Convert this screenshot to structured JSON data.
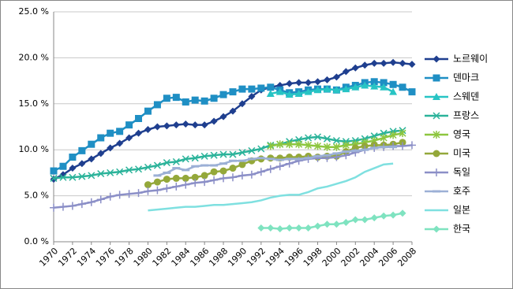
{
  "chart_data": {
    "type": "line",
    "grid": true,
    "legend": "right",
    "x": [
      1970,
      1971,
      1972,
      1973,
      1974,
      1975,
      1976,
      1977,
      1978,
      1979,
      1980,
      1981,
      1982,
      1983,
      1984,
      1985,
      1986,
      1987,
      1988,
      1989,
      1990,
      1991,
      1992,
      1993,
      1994,
      1995,
      1996,
      1997,
      1998,
      1999,
      2000,
      2001,
      2002,
      2003,
      2004,
      2005,
      2006,
      2007,
      2008
    ],
    "xlim": [
      1970,
      2008
    ],
    "xticks": [
      1970,
      1972,
      1974,
      1976,
      1978,
      1980,
      1982,
      1984,
      1986,
      1988,
      1990,
      1992,
      1994,
      1996,
      1998,
      2000,
      2002,
      2004,
      2006,
      2008
    ],
    "ylim": [
      0,
      25
    ],
    "yticks": [
      {
        "value": 0,
        "label": "0.0 %"
      },
      {
        "value": 5,
        "label": "5.0 %"
      },
      {
        "value": 10,
        "label": "10.0 %"
      },
      {
        "value": 15,
        "label": "15.0 %"
      },
      {
        "value": 20,
        "label": "20.0 %"
      },
      {
        "value": 25,
        "label": "25.0 %"
      }
    ],
    "series": [
      {
        "name": "노르웨이",
        "color": "#1f3f8f",
        "marker": "diamond",
        "values": [
          6.8,
          7.3,
          8.0,
          8.5,
          9.0,
          9.6,
          10.2,
          10.7,
          11.3,
          11.8,
          12.2,
          12.5,
          12.6,
          12.7,
          12.8,
          12.7,
          12.7,
          13.1,
          13.6,
          14.2,
          15.0,
          15.8,
          16.5,
          16.8,
          17.0,
          17.2,
          17.3,
          17.3,
          17.4,
          17.6,
          17.9,
          18.5,
          18.9,
          19.2,
          19.4,
          19.4,
          19.5,
          19.4,
          19.3
        ]
      },
      {
        "name": "덴마크",
        "color": "#1f8fc4",
        "marker": "square",
        "values": [
          7.7,
          8.2,
          9.2,
          9.9,
          10.6,
          11.3,
          11.8,
          12.0,
          12.7,
          13.4,
          14.2,
          14.9,
          15.6,
          15.7,
          15.2,
          15.4,
          15.3,
          15.6,
          16.0,
          16.3,
          16.6,
          16.6,
          16.7,
          16.8,
          16.5,
          16.2,
          16.3,
          16.5,
          16.6,
          16.6,
          16.5,
          16.8,
          17.0,
          17.3,
          17.4,
          17.3,
          17.1,
          16.8,
          16.3
        ]
      },
      {
        "name": "스웨덴",
        "color": "#27c4c4",
        "marker": "triangle",
        "values": [
          null,
          null,
          null,
          null,
          null,
          null,
          null,
          null,
          null,
          null,
          null,
          null,
          null,
          null,
          null,
          null,
          null,
          null,
          null,
          null,
          null,
          null,
          null,
          16.1,
          16.3,
          16.0,
          16.1,
          16.3,
          16.5,
          16.6,
          16.5,
          16.6,
          16.8,
          17.0,
          16.9,
          16.8,
          16.3,
          null,
          null
        ]
      },
      {
        "name": "프랑스",
        "color": "#2bb39a",
        "marker": "x",
        "values": [
          6.9,
          7.0,
          7.0,
          7.1,
          7.2,
          7.4,
          7.5,
          7.6,
          7.8,
          7.9,
          8.1,
          8.3,
          8.6,
          8.7,
          9.0,
          9.1,
          9.3,
          9.4,
          9.5,
          9.5,
          9.7,
          9.9,
          10.1,
          10.5,
          10.6,
          10.9,
          11.1,
          11.3,
          11.4,
          11.2,
          11.0,
          10.9,
          11.0,
          11.2,
          11.5,
          11.8,
          12.0,
          12.1,
          null
        ]
      },
      {
        "name": "영국",
        "color": "#8dc63f",
        "marker": "star",
        "values": [
          null,
          null,
          null,
          null,
          null,
          null,
          null,
          null,
          null,
          null,
          null,
          null,
          null,
          null,
          null,
          null,
          null,
          null,
          null,
          null,
          null,
          null,
          null,
          10.4,
          10.6,
          10.6,
          10.6,
          10.5,
          10.4,
          10.3,
          10.3,
          10.5,
          10.6,
          10.8,
          11.0,
          11.3,
          11.6,
          11.8,
          null
        ]
      },
      {
        "name": "미국",
        "color": "#94a83a",
        "marker": "circle",
        "values": [
          null,
          null,
          null,
          null,
          null,
          null,
          null,
          null,
          null,
          null,
          6.2,
          6.5,
          6.8,
          6.9,
          6.9,
          7.0,
          7.2,
          7.6,
          7.7,
          8.0,
          8.4,
          8.8,
          9.0,
          9.1,
          9.1,
          9.2,
          9.2,
          9.3,
          9.2,
          9.3,
          9.3,
          9.8,
          10.2,
          10.4,
          10.5,
          10.5,
          10.6,
          10.8,
          null
        ]
      },
      {
        "name": "독일",
        "color": "#8b8fc7",
        "marker": "plus",
        "values": [
          3.7,
          3.8,
          3.9,
          4.1,
          4.3,
          4.6,
          4.9,
          5.1,
          5.2,
          5.3,
          5.5,
          5.6,
          5.8,
          6.0,
          6.2,
          6.4,
          6.5,
          6.7,
          6.9,
          7.0,
          7.2,
          7.3,
          7.6,
          7.9,
          8.2,
          8.5,
          8.8,
          9.0,
          9.1,
          9.1,
          9.2,
          9.4,
          9.7,
          10.0,
          10.2,
          10.3,
          10.4,
          10.4,
          10.5
        ]
      },
      {
        "name": "호주",
        "color": "#9cb0d6",
        "marker": "dash",
        "values": [
          null,
          null,
          null,
          null,
          null,
          null,
          null,
          null,
          null,
          null,
          null,
          7.2,
          7.5,
          8.0,
          7.8,
          8.2,
          8.3,
          8.3,
          8.5,
          8.8,
          8.8,
          9.0,
          9.1,
          9.0,
          8.9,
          9.0,
          9.0,
          9.1,
          9.3,
          9.4,
          9.6,
          9.8,
          9.9,
          10.0,
          10.2,
          10.3,
          10.3,
          null,
          null
        ]
      },
      {
        "name": "일본",
        "color": "#7fe0e0",
        "marker": "none",
        "values": [
          null,
          null,
          null,
          null,
          null,
          null,
          null,
          null,
          null,
          null,
          3.4,
          3.5,
          3.6,
          3.7,
          3.8,
          3.8,
          3.9,
          4.0,
          4.0,
          4.1,
          4.2,
          4.3,
          4.5,
          4.8,
          5.0,
          5.1,
          5.1,
          5.4,
          5.8,
          6.0,
          6.3,
          6.6,
          7.0,
          7.6,
          8.0,
          8.4,
          8.5,
          null,
          null
        ]
      },
      {
        "name": "한국",
        "color": "#7fe3c0",
        "marker": "diamond",
        "values": [
          null,
          null,
          null,
          null,
          null,
          null,
          null,
          null,
          null,
          null,
          null,
          null,
          null,
          null,
          null,
          null,
          null,
          null,
          null,
          null,
          null,
          null,
          1.5,
          1.5,
          1.4,
          1.5,
          1.5,
          1.5,
          1.7,
          1.9,
          1.9,
          2.1,
          2.4,
          2.4,
          2.6,
          2.8,
          2.9,
          3.1,
          null
        ]
      }
    ]
  }
}
